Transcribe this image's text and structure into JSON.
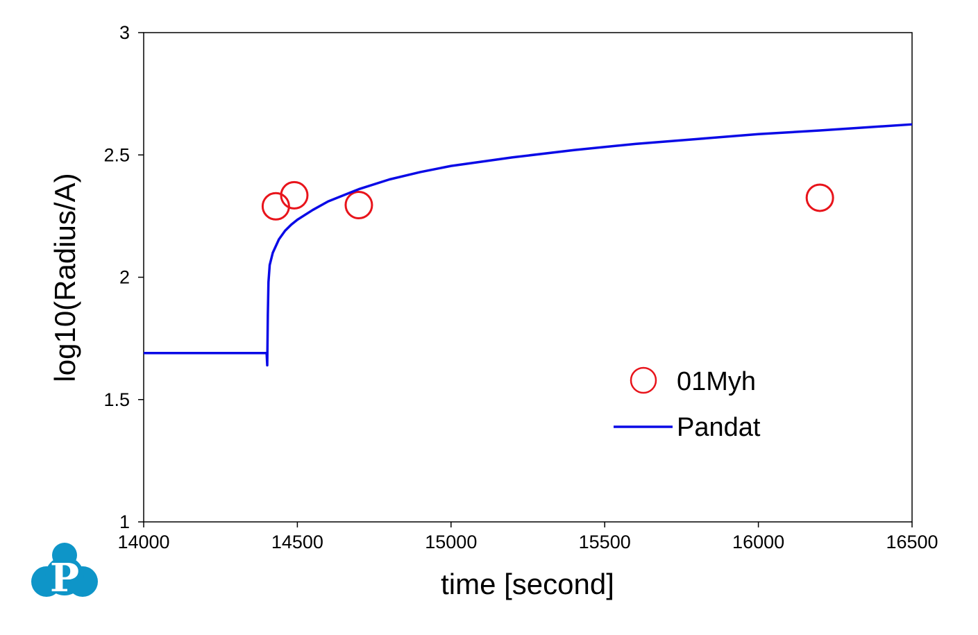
{
  "chart_data": {
    "type": "line",
    "xlabel": "time [second]",
    "ylabel": "log10(Radius/A)",
    "xlim": [
      14000,
      16500
    ],
    "ylim": [
      1,
      3
    ],
    "x_ticks": [
      "14000",
      "14500",
      "15000",
      "15500",
      "16000",
      "16500"
    ],
    "x_tick_values": [
      14000,
      14500,
      15000,
      15500,
      16000,
      16500
    ],
    "y_ticks": [
      "1",
      "1.5",
      "2",
      "2.5",
      "3"
    ],
    "y_tick_values": [
      1,
      1.5,
      2,
      2.5,
      3
    ],
    "grid": false,
    "legend_position": "lower-right",
    "series": [
      {
        "name": "01Myh",
        "kind": "scatter",
        "marker": "open-circle",
        "color": "#e8141b",
        "x": [
          14430,
          14490,
          14700,
          16200
        ],
        "y": [
          2.29,
          2.335,
          2.295,
          2.325
        ]
      },
      {
        "name": "Pandat",
        "kind": "line",
        "color": "#0a0ae6",
        "x": [
          14000,
          14100,
          14200,
          14300,
          14400,
          14402,
          14404,
          14406,
          14410,
          14420,
          14440,
          14460,
          14480,
          14500,
          14550,
          14600,
          14700,
          14800,
          14900,
          15000,
          15200,
          15400,
          15600,
          15800,
          16000,
          16200,
          16500
        ],
        "y": [
          1.69,
          1.69,
          1.69,
          1.69,
          1.69,
          1.64,
          1.85,
          1.98,
          2.05,
          2.1,
          2.155,
          2.19,
          2.215,
          2.235,
          2.275,
          2.31,
          2.36,
          2.4,
          2.43,
          2.455,
          2.49,
          2.52,
          2.545,
          2.565,
          2.585,
          2.6,
          2.625
        ]
      }
    ]
  },
  "logo": {
    "letter": "P",
    "color": "#0e95c8"
  }
}
